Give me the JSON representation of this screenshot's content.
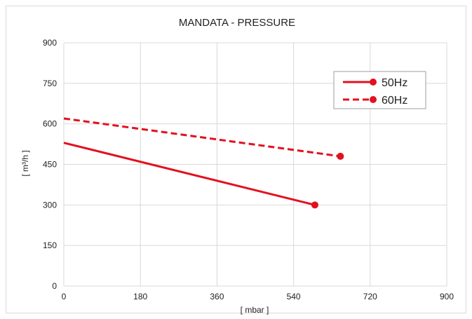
{
  "chart_data": {
    "type": "line",
    "title": "MANDATA - PRESSURE",
    "xlabel": "[ mbar ]",
    "ylabel": "[ m³/h ]",
    "xlim": [
      0,
      900
    ],
    "ylim": [
      0,
      900
    ],
    "xticks": [
      0,
      180,
      360,
      540,
      720,
      900
    ],
    "yticks": [
      0,
      150,
      300,
      450,
      600,
      750,
      900
    ],
    "grid": true,
    "legend_position": "top-right",
    "series": [
      {
        "name": "50Hz",
        "style": "solid",
        "color": "#e3101f",
        "x": [
          0,
          590
        ],
        "y": [
          530,
          300
        ]
      },
      {
        "name": "60Hz",
        "style": "dashed",
        "color": "#e3101f",
        "x": [
          0,
          650
        ],
        "y": [
          620,
          480
        ]
      }
    ]
  }
}
